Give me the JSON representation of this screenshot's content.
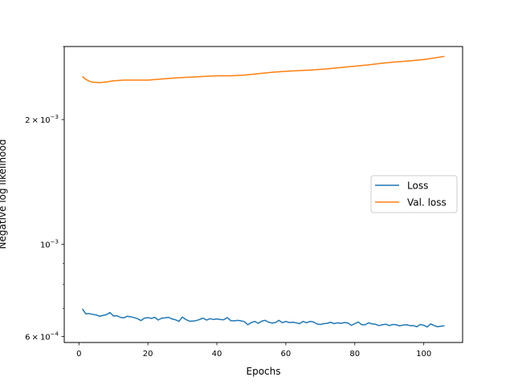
{
  "chart_data": {
    "type": "line",
    "title": "",
    "xlabel": "Epochs",
    "ylabel": "Negative log likelihood",
    "xlim": [
      -4.25,
      111.25
    ],
    "ylim": [
      0.00058,
      0.003
    ],
    "yscale": "log",
    "grid": false,
    "legend_position": "center-right",
    "x_ticks": [
      0,
      20,
      40,
      60,
      80,
      100
    ],
    "x_tick_labels": [
      "0",
      "20",
      "40",
      "60",
      "80",
      "100"
    ],
    "y_ticks": [
      0.0006,
      0.001,
      0.002
    ],
    "y_tick_labels": [
      {
        "mant": "6",
        "times": "×",
        "base": "10",
        "exp": "−4"
      },
      {
        "mant": "",
        "times": "",
        "base": "10",
        "exp": "−3"
      },
      {
        "mant": "2",
        "times": "×",
        "base": "10",
        "exp": "−3"
      }
    ],
    "series": [
      {
        "name": "Loss",
        "color": "#1f77b4",
        "x": [
          1,
          2,
          3,
          4,
          5,
          6,
          7,
          8,
          9,
          10,
          11,
          12,
          13,
          14,
          15,
          16,
          17,
          18,
          19,
          20,
          21,
          22,
          23,
          24,
          25,
          26,
          27,
          28,
          29,
          30,
          31,
          32,
          33,
          34,
          35,
          36,
          37,
          38,
          39,
          40,
          41,
          42,
          43,
          44,
          45,
          46,
          47,
          48,
          49,
          50,
          51,
          52,
          53,
          54,
          55,
          56,
          57,
          58,
          59,
          60,
          61,
          62,
          63,
          64,
          65,
          66,
          67,
          68,
          69,
          70,
          71,
          72,
          73,
          74,
          75,
          76,
          77,
          78,
          79,
          80,
          81,
          82,
          83,
          84,
          85,
          86,
          87,
          88,
          89,
          90,
          91,
          92,
          93,
          94,
          95,
          96,
          97,
          98,
          99,
          100,
          101,
          102,
          103,
          104,
          105,
          106
        ],
        "y": [
          0.000699,
          0.00068,
          0.000681,
          0.000678,
          0.000676,
          0.000671,
          0.000674,
          0.000677,
          0.000685,
          0.000672,
          0.000673,
          0.000667,
          0.000665,
          0.000671,
          0.000669,
          0.000666,
          0.000662,
          0.000655,
          0.000664,
          0.000666,
          0.000663,
          0.000667,
          0.000657,
          0.000664,
          0.000665,
          0.000667,
          0.000661,
          0.000658,
          0.000652,
          0.000668,
          0.000659,
          0.000653,
          0.000653,
          0.000655,
          0.000659,
          0.000664,
          0.000657,
          0.000662,
          0.000659,
          0.000661,
          0.000659,
          0.000658,
          0.000666,
          0.000655,
          0.000654,
          0.000656,
          0.000654,
          0.000651,
          0.00064,
          0.000648,
          0.000652,
          0.000645,
          0.000653,
          0.000656,
          0.000649,
          0.000646,
          0.000648,
          0.000656,
          0.000647,
          0.000652,
          0.000648,
          0.000649,
          0.000647,
          0.000644,
          0.000652,
          0.000647,
          0.000652,
          0.00065,
          0.000643,
          0.000641,
          0.000644,
          0.000645,
          0.000649,
          0.000644,
          0.000647,
          0.000645,
          0.000648,
          0.000646,
          0.000638,
          0.000644,
          0.00065,
          0.00064,
          0.00064,
          0.000647,
          0.000643,
          0.000642,
          0.000637,
          0.00064,
          0.000642,
          0.000637,
          0.000641,
          0.00064,
          0.000636,
          0.000639,
          0.00064,
          0.000637,
          0.000637,
          0.000633,
          0.000641,
          0.000638,
          0.000632,
          0.000643,
          0.000637,
          0.000633,
          0.000635,
          0.000636
        ]
      },
      {
        "name": "Val. loss",
        "color": "#ff7f0e",
        "x": [
          1,
          2,
          3,
          4,
          6,
          8,
          10,
          13,
          16,
          20,
          24,
          28,
          32,
          36,
          40,
          44,
          48,
          52,
          56,
          60,
          64,
          68,
          72,
          76,
          80,
          84,
          88,
          92,
          96,
          100,
          103,
          106
        ],
        "y": [
          0.00254,
          0.0025,
          0.002475,
          0.00246,
          0.002455,
          0.002465,
          0.00248,
          0.00249,
          0.00249,
          0.00249,
          0.002505,
          0.00252,
          0.00253,
          0.00254,
          0.00255,
          0.00255,
          0.00256,
          0.00258,
          0.0026,
          0.002615,
          0.002625,
          0.002635,
          0.00265,
          0.00267,
          0.00269,
          0.00271,
          0.002735,
          0.002755,
          0.00277,
          0.00279,
          0.002815,
          0.00284
        ]
      }
    ]
  }
}
